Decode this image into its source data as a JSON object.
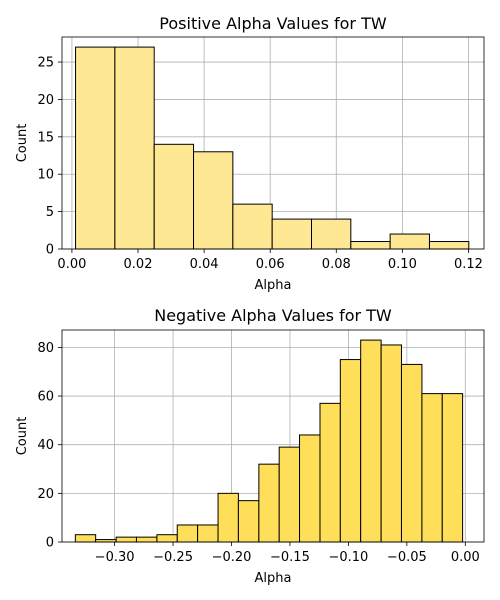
{
  "chart_data": [
    {
      "type": "bar",
      "title": "Positive Alpha Values for TW",
      "xlabel": "Alpha",
      "ylabel": "Count",
      "xlim": [
        -0.003,
        0.1247
      ],
      "ylim": [
        0,
        28.35
      ],
      "xticks": [
        "0.00",
        "0.02",
        "0.04",
        "0.06",
        "0.08",
        "0.10",
        "0.12"
      ],
      "yticks": [
        "0",
        "5",
        "10",
        "15",
        "20",
        "25"
      ],
      "grid": true,
      "color": "#ffe894",
      "bins": [
        {
          "x0": 0.0011,
          "x1": 0.013,
          "count": 27
        },
        {
          "x0": 0.013,
          "x1": 0.0249,
          "count": 27
        },
        {
          "x0": 0.0249,
          "x1": 0.0368,
          "count": 14
        },
        {
          "x0": 0.0368,
          "x1": 0.0487,
          "count": 13
        },
        {
          "x0": 0.0487,
          "x1": 0.0606,
          "count": 6
        },
        {
          "x0": 0.0606,
          "x1": 0.0725,
          "count": 4
        },
        {
          "x0": 0.0725,
          "x1": 0.0844,
          "count": 4
        },
        {
          "x0": 0.0844,
          "x1": 0.0963,
          "count": 1
        },
        {
          "x0": 0.0963,
          "x1": 0.1082,
          "count": 2
        },
        {
          "x0": 0.1082,
          "x1": 0.1201,
          "count": 1
        }
      ]
    },
    {
      "type": "bar",
      "title": "Negative Alpha Values for TW",
      "xlabel": "Alpha",
      "ylabel": "Count",
      "xlim": [
        -0.345,
        0.016
      ],
      "ylim": [
        0,
        87.15
      ],
      "xticks": [
        "−0.30",
        "−0.25",
        "−0.20",
        "−0.15",
        "−0.10",
        "−0.05",
        "0.00"
      ],
      "yticks": [
        "0",
        "20",
        "40",
        "60",
        "80"
      ],
      "grid": true,
      "color": "#ffdf5a",
      "bins": [
        {
          "x0": -0.3336,
          "x1": -0.3162,
          "count": 3
        },
        {
          "x0": -0.3162,
          "x1": -0.2987,
          "count": 1
        },
        {
          "x0": -0.2987,
          "x1": -0.2813,
          "count": 2
        },
        {
          "x0": -0.2813,
          "x1": -0.2638,
          "count": 2
        },
        {
          "x0": -0.2638,
          "x1": -0.2464,
          "count": 3
        },
        {
          "x0": -0.2464,
          "x1": -0.229,
          "count": 7
        },
        {
          "x0": -0.229,
          "x1": -0.2115,
          "count": 7
        },
        {
          "x0": -0.2115,
          "x1": -0.1941,
          "count": 20
        },
        {
          "x0": -0.1941,
          "x1": -0.1766,
          "count": 17
        },
        {
          "x0": -0.1766,
          "x1": -0.1592,
          "count": 32
        },
        {
          "x0": -0.1592,
          "x1": -0.1418,
          "count": 39
        },
        {
          "x0": -0.1418,
          "x1": -0.1243,
          "count": 44
        },
        {
          "x0": -0.1243,
          "x1": -0.1069,
          "count": 57
        },
        {
          "x0": -0.1069,
          "x1": -0.0895,
          "count": 75
        },
        {
          "x0": -0.0895,
          "x1": -0.072,
          "count": 83
        },
        {
          "x0": -0.072,
          "x1": -0.0546,
          "count": 81
        },
        {
          "x0": -0.0546,
          "x1": -0.0371,
          "count": 73
        },
        {
          "x0": -0.0371,
          "x1": -0.0197,
          "count": 61
        },
        {
          "x0": -0.0197,
          "x1": -0.0023,
          "count": 61
        }
      ]
    }
  ]
}
